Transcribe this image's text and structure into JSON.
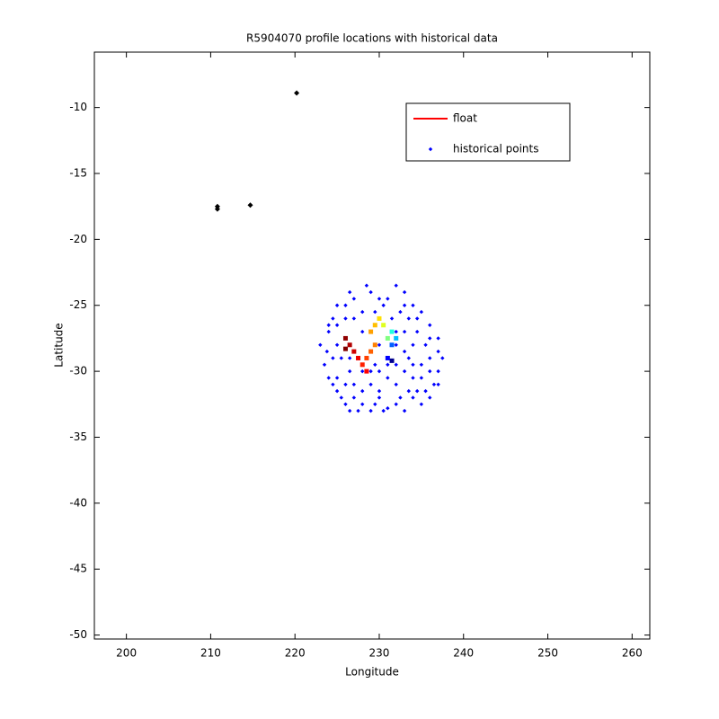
{
  "chart_data": {
    "type": "scatter",
    "title": "R5904070 profile locations with historical data",
    "xlabel": "Longitude",
    "ylabel": "Latitude",
    "xlim": [
      196.2,
      262.1
    ],
    "ylim": [
      -50.3,
      -5.8
    ],
    "xticks": [
      200,
      210,
      220,
      230,
      240,
      250,
      260
    ],
    "yticks": [
      -10,
      -15,
      -20,
      -25,
      -30,
      -35,
      -40,
      -45,
      -50
    ],
    "grid": false,
    "legend": "upper right",
    "series": [
      {
        "name": "historical points",
        "color": "#0000ff",
        "marker": "dot",
        "x": [
          226,
          227,
          228.5,
          229,
          231,
          232,
          233,
          234,
          235,
          236,
          237,
          237.5,
          237,
          236.5,
          236,
          235,
          234,
          233,
          232,
          231,
          230,
          229,
          228,
          227,
          226,
          225,
          224,
          223.5,
          223,
          224,
          224.5,
          225,
          226,
          225.5,
          226.5,
          227,
          228,
          229,
          230,
          231,
          232,
          233,
          234,
          235,
          235.5,
          234.5,
          233.5,
          232.5,
          231.5,
          230.5,
          229.5,
          228,
          227,
          226,
          225,
          224.5,
          225,
          226,
          228,
          229,
          230,
          232,
          233,
          234,
          236,
          236,
          237,
          235.5,
          234.5,
          233.5,
          232.5,
          230.5,
          229.5,
          227.5,
          226.5,
          225.5,
          224.5,
          223.8,
          224,
          225,
          226.5,
          230,
          233,
          234.5,
          236,
          237,
          233,
          232,
          231,
          230,
          228,
          227,
          226.5,
          228.5,
          229.5,
          231,
          232,
          233.5,
          234,
          235
        ],
        "y": [
          -25,
          -24.5,
          -23.5,
          -24,
          -24.5,
          -23.5,
          -24,
          -25,
          -25.5,
          -26.5,
          -27.5,
          -29,
          -30,
          -31,
          -32,
          -32.5,
          -32,
          -33,
          -32.5,
          -32.8,
          -32,
          -33,
          -32.5,
          -32,
          -32.5,
          -31.5,
          -30.5,
          -29.5,
          -28,
          -27,
          -26,
          -26.5,
          -27.5,
          -29,
          -30,
          -31,
          -31.5,
          -31,
          -31.5,
          -30.5,
          -31,
          -30,
          -30.5,
          -29.5,
          -28,
          -27,
          -26,
          -25.5,
          -26,
          -25,
          -25.5,
          -25.5,
          -26,
          -26,
          -28,
          -29,
          -30.5,
          -31,
          -30,
          -30,
          -30,
          -29.5,
          -28.5,
          -28,
          -29,
          -30,
          -31,
          -31.5,
          -31.5,
          -31.5,
          -32,
          -33,
          -32.5,
          -33,
          -33,
          -32,
          -31,
          -28.5,
          -26.5,
          -25,
          -24,
          -24.5,
          -25,
          -26,
          -27.5,
          -28.5,
          -27,
          -27,
          -27.5,
          -28,
          -27,
          -28.5,
          -29,
          -29,
          -29.5,
          -29.5,
          -28,
          -29,
          -29.5,
          -30.5
        ]
      },
      {
        "name": "float",
        "color": "#ff0000",
        "marker": "square",
        "x": [
          231.5,
          231,
          231.5,
          232,
          231.5,
          231,
          230.5,
          230,
          229.5,
          229,
          229.5,
          229,
          228.5,
          228,
          228.5,
          227.5,
          227,
          226.5,
          226,
          226
        ],
        "y": [
          -29.2,
          -29,
          -28,
          -27.5,
          -27,
          -27.5,
          -26.5,
          -26,
          -26.5,
          -27,
          -28,
          -28.5,
          -29,
          -29.5,
          -30,
          -29,
          -28.5,
          -28,
          -27.5,
          -28.3
        ],
        "point_colors": [
          "#00008f",
          "#0000ff",
          "#0060ff",
          "#00c0ff",
          "#20ffdf",
          "#80ff80",
          "#dfff20",
          "#ffdf00",
          "#ffbf00",
          "#ffa000",
          "#ff8000",
          "#ff6000",
          "#ff4000",
          "#ff2000",
          "#ff0000",
          "#ef0000",
          "#d00000",
          "#b00000",
          "#900000",
          "#800000"
        ]
      },
      {
        "color": "#000000",
        "marker": "diamond",
        "x": [
          210.8,
          210.8,
          214.7,
          220.2
        ],
        "y": [
          -17.5,
          -17.7,
          -17.4,
          -8.9
        ]
      }
    ]
  }
}
